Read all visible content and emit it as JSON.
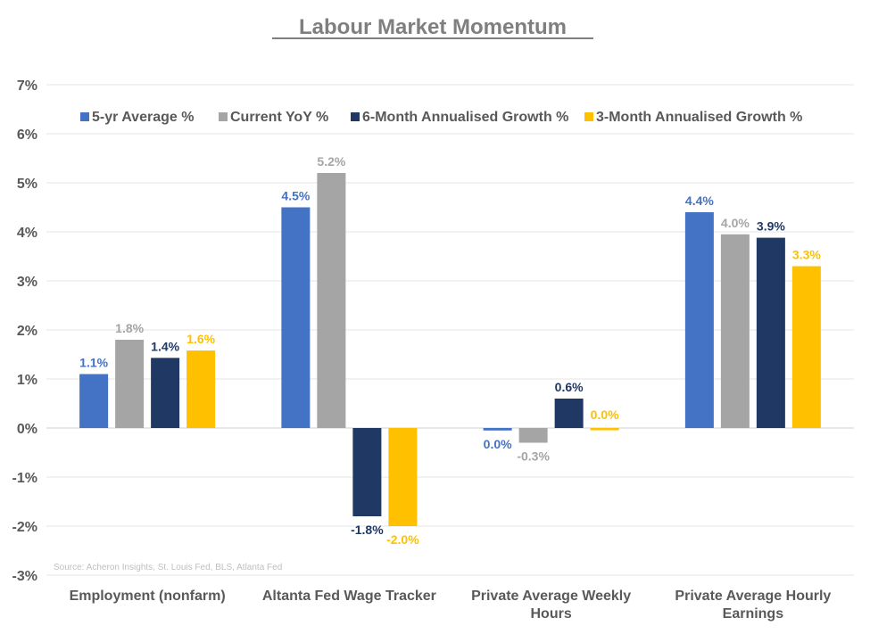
{
  "chart_data": {
    "type": "bar",
    "title": "Labour Market Momentum",
    "source": "Source: Acheron Insights, St. Louis Fed, BLS, Atlanta Fed",
    "xlabel": "",
    "ylabel": "",
    "ylim": [
      -3,
      7
    ],
    "yticks": [
      7,
      6,
      5,
      4,
      3,
      2,
      1,
      0,
      -1,
      -2,
      -3
    ],
    "ytick_labels": [
      "7%",
      "6%",
      "5%",
      "4%",
      "3%",
      "2%",
      "1%",
      "0%",
      "-1%",
      "-2%",
      "-3%"
    ],
    "grid": true,
    "legend_position": "top",
    "categories": [
      [
        "Employment (nonfarm)"
      ],
      [
        "Altanta Fed Wage Tracker"
      ],
      [
        "Private Average Weekly",
        "Hours"
      ],
      [
        "Private Average Hourly",
        "Earnings"
      ]
    ],
    "series": [
      {
        "name": "5-yr Average %",
        "color": "#4472c4",
        "values": [
          1.1,
          4.5,
          -0.05,
          4.4
        ],
        "labels": [
          "1.1%",
          "4.5%",
          "0.0%",
          "4.4%"
        ]
      },
      {
        "name": "Current YoY %",
        "color": "#a5a5a5",
        "values": [
          1.8,
          5.2,
          -0.3,
          3.95
        ],
        "labels": [
          "1.8%",
          "5.2%",
          "-0.3%",
          "4.0%"
        ]
      },
      {
        "name": "6-Month Annualised Growth %",
        "color": "#203864",
        "values": [
          1.43,
          -1.8,
          0.6,
          3.88
        ],
        "labels": [
          "1.4%",
          "-1.8%",
          "0.6%",
          "3.9%"
        ]
      },
      {
        "name": "3-Month Annualised Growth %",
        "color": "#ffc000",
        "values": [
          1.58,
          -2.0,
          0.0,
          3.3
        ],
        "labels": [
          "1.6%",
          "-2.0%",
          "0.0%",
          "3.3%"
        ]
      }
    ]
  }
}
